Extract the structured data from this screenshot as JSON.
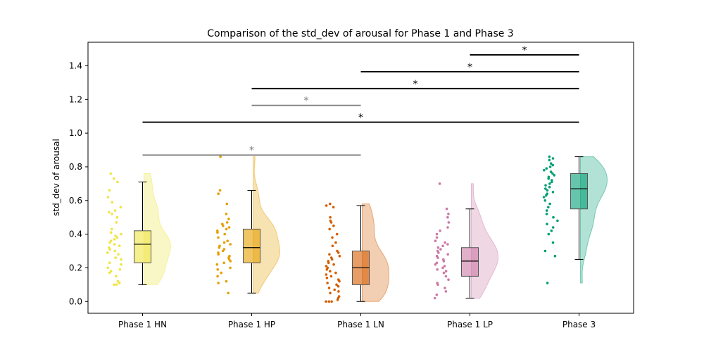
{
  "chart_data": {
    "type": "raincloud",
    "title": "Comparison of the std_dev of arousal for Phase 1 and Phase 3",
    "xlabel": "",
    "ylabel": "std_dev of arousal",
    "ylim": [
      -0.07,
      1.54
    ],
    "yticks": [
      0.0,
      0.2,
      0.4,
      0.6,
      0.8,
      1.0,
      1.2,
      1.4
    ],
    "ytick_labels": [
      "0.0",
      "0.2",
      "0.4",
      "0.6",
      "0.8",
      "1.0",
      "1.2",
      "1.4"
    ],
    "grid": false,
    "categories": [
      "Phase 1 HN",
      "Phase 1 HP",
      "Phase 1 LN",
      "Phase 1 LP",
      "Phase 3"
    ],
    "groups": [
      {
        "name": "Phase 1 HN",
        "color": "#f0e442",
        "box": {
          "min": 0.1,
          "q1": 0.23,
          "median": 0.34,
          "q3": 0.42,
          "max": 0.71
        },
        "points": [
          0.76,
          0.73,
          0.71,
          0.66,
          0.62,
          0.59,
          0.56,
          0.54,
          0.53,
          0.52,
          0.5,
          0.47,
          0.43,
          0.41,
          0.4,
          0.39,
          0.38,
          0.37,
          0.36,
          0.35,
          0.34,
          0.33,
          0.32,
          0.31,
          0.3,
          0.29,
          0.28,
          0.26,
          0.25,
          0.23,
          0.22,
          0.2,
          0.19,
          0.18,
          0.17,
          0.15,
          0.12,
          0.11,
          0.1,
          0.1
        ]
      },
      {
        "name": "Phase 1 HP",
        "color": "#e69f00",
        "box": {
          "min": 0.05,
          "q1": 0.23,
          "median": 0.32,
          "q3": 0.43,
          "max": 0.66
        },
        "points": [
          0.86,
          0.66,
          0.64,
          0.58,
          0.52,
          0.49,
          0.47,
          0.46,
          0.45,
          0.44,
          0.43,
          0.42,
          0.41,
          0.4,
          0.38,
          0.36,
          0.35,
          0.34,
          0.33,
          0.32,
          0.31,
          0.3,
          0.29,
          0.28,
          0.27,
          0.26,
          0.25,
          0.24,
          0.23,
          0.22,
          0.2,
          0.19,
          0.17,
          0.15,
          0.12,
          0.11,
          0.05
        ]
      },
      {
        "name": "Phase 1 LN",
        "color": "#d55e00",
        "box": {
          "min": 0.0,
          "q1": 0.1,
          "median": 0.2,
          "q3": 0.3,
          "max": 0.57
        },
        "points": [
          0.58,
          0.57,
          0.56,
          0.5,
          0.48,
          0.47,
          0.45,
          0.43,
          0.4,
          0.38,
          0.35,
          0.33,
          0.3,
          0.29,
          0.28,
          0.27,
          0.26,
          0.25,
          0.24,
          0.23,
          0.22,
          0.21,
          0.2,
          0.19,
          0.18,
          0.17,
          0.16,
          0.15,
          0.14,
          0.13,
          0.12,
          0.11,
          0.1,
          0.09,
          0.08,
          0.07,
          0.06,
          0.05,
          0.03,
          0.02,
          0.01,
          0.0,
          0.0,
          0.0
        ]
      },
      {
        "name": "Phase 1 LP",
        "color": "#cc79a7",
        "box": {
          "min": 0.02,
          "q1": 0.15,
          "median": 0.24,
          "q3": 0.32,
          "max": 0.55
        },
        "points": [
          0.7,
          0.55,
          0.52,
          0.5,
          0.47,
          0.44,
          0.42,
          0.4,
          0.38,
          0.36,
          0.35,
          0.34,
          0.33,
          0.32,
          0.31,
          0.3,
          0.29,
          0.28,
          0.27,
          0.26,
          0.25,
          0.24,
          0.23,
          0.22,
          0.21,
          0.2,
          0.19,
          0.18,
          0.17,
          0.15,
          0.13,
          0.11,
          0.1,
          0.08,
          0.06,
          0.04,
          0.02
        ]
      },
      {
        "name": "Phase 3",
        "color": "#009e73",
        "box": {
          "min": 0.25,
          "q1": 0.55,
          "median": 0.67,
          "q3": 0.76,
          "max": 0.86
        },
        "points": [
          0.86,
          0.85,
          0.84,
          0.82,
          0.81,
          0.8,
          0.79,
          0.78,
          0.77,
          0.76,
          0.75,
          0.74,
          0.73,
          0.72,
          0.71,
          0.7,
          0.69,
          0.68,
          0.67,
          0.66,
          0.65,
          0.64,
          0.63,
          0.62,
          0.6,
          0.58,
          0.56,
          0.54,
          0.52,
          0.5,
          0.48,
          0.46,
          0.44,
          0.42,
          0.4,
          0.35,
          0.3,
          0.27,
          0.11
        ]
      }
    ],
    "significance": [
      {
        "from": 0,
        "to": 2,
        "y": 0.87,
        "label": "*",
        "color": "#808080"
      },
      {
        "from": 0,
        "to": 4,
        "y": 1.065,
        "label": "*",
        "color": "#000000"
      },
      {
        "from": 1,
        "to": 2,
        "y": 1.165,
        "label": "*",
        "color": "#808080"
      },
      {
        "from": 1,
        "to": 4,
        "y": 1.265,
        "label": "*",
        "color": "#000000"
      },
      {
        "from": 2,
        "to": 4,
        "y": 1.365,
        "label": "*",
        "color": "#000000"
      },
      {
        "from": 3,
        "to": 4,
        "y": 1.465,
        "label": "*",
        "color": "#000000"
      }
    ]
  }
}
